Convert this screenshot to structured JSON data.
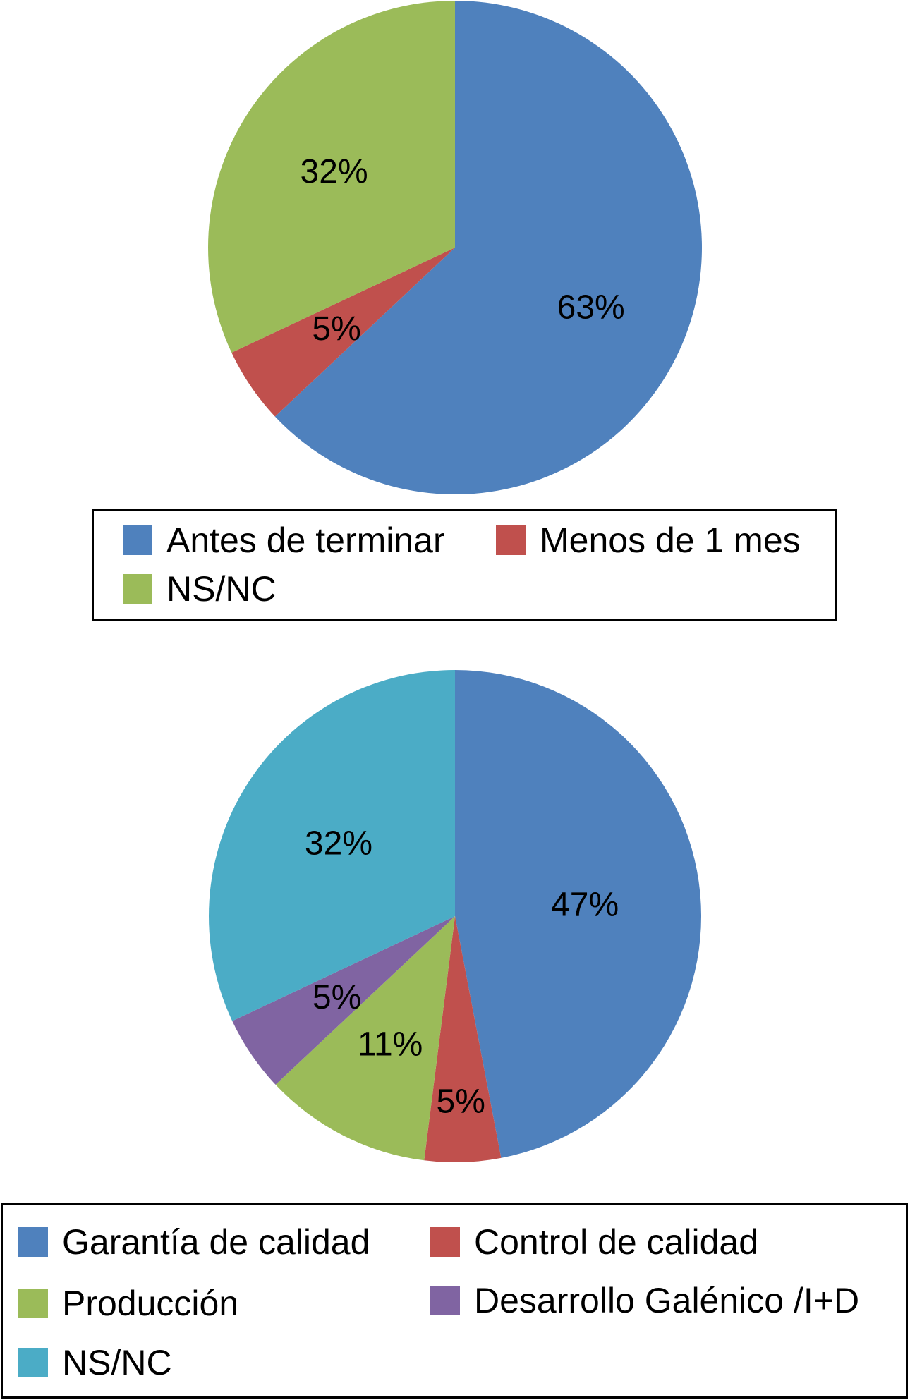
{
  "chart_data": [
    {
      "type": "pie",
      "categories": [
        "Antes de terminar",
        "Menos de 1 mes",
        "NS/NC"
      ],
      "values": [
        63,
        5,
        32
      ],
      "labels": [
        "63%",
        "5%",
        "32%"
      ],
      "colors": [
        "#4F81BD",
        "#C0504D",
        "#9BBB59"
      ],
      "start_angle": "12 o'clock",
      "direction": "clockwise",
      "legend": {
        "position": "bottom",
        "items": [
          {
            "label": "Antes de terminar",
            "color": "#4F81BD"
          },
          {
            "label": "Menos de 1 mes",
            "color": "#C0504D"
          },
          {
            "label": "NS/NC",
            "color": "#9BBB59"
          }
        ]
      }
    },
    {
      "type": "pie",
      "categories": [
        "Garantía de calidad",
        "Control de calidad",
        "Producción",
        "Desarrollo Galénico /I+D",
        "NS/NC"
      ],
      "values": [
        47,
        5,
        11,
        5,
        32
      ],
      "labels": [
        "47%",
        "5%",
        "11%",
        "5%",
        "32%"
      ],
      "colors": [
        "#4F81BD",
        "#C0504D",
        "#9BBB59",
        "#8064A2",
        "#4BACC6"
      ],
      "start_angle": "12 o'clock",
      "direction": "clockwise",
      "legend": {
        "position": "bottom",
        "items": [
          {
            "label": "Garantía de calidad",
            "color": "#4F81BD"
          },
          {
            "label": "Control de calidad",
            "color": "#C0504D"
          },
          {
            "label": "Producción",
            "color": "#9BBB59"
          },
          {
            "label": "Desarrollo Galénico /I+D",
            "color": "#8064A2"
          },
          {
            "label": "NS/NC",
            "color": "#4BACC6"
          }
        ]
      }
    }
  ]
}
